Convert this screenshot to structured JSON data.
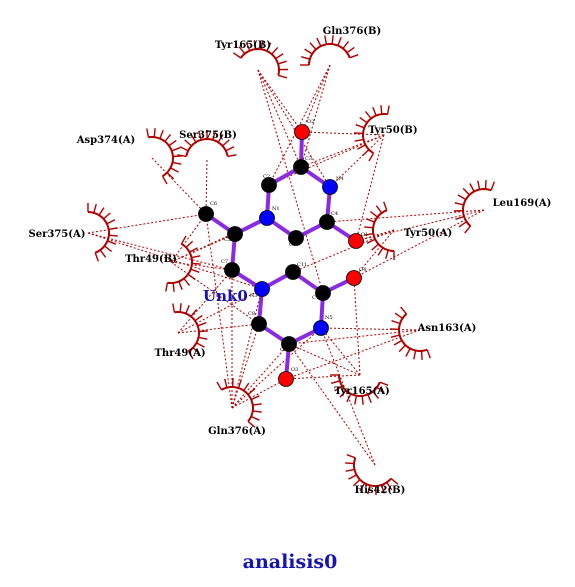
{
  "ligand": {
    "name": "Unk0"
  },
  "caption": "analisis0",
  "colors": {
    "bond": "#8a2be2",
    "hydrophobic": "#b00000",
    "carbon": "#000000",
    "nitrogen": "#0000ff",
    "oxygen": "#ff0000",
    "caption": "#1414b4"
  },
  "atoms": [
    {
      "id": "O2",
      "element": "O",
      "label": "O2"
    },
    {
      "id": "C3",
      "element": "C",
      "label": "C3"
    },
    {
      "id": "C2",
      "element": "C",
      "label": "C2"
    },
    {
      "id": "N4",
      "element": "N",
      "label": "N4"
    },
    {
      "id": "N1",
      "element": "N",
      "label": "N1"
    },
    {
      "id": "C5",
      "element": "C",
      "label": "C5"
    },
    {
      "id": "C6",
      "element": "C",
      "label": "C6"
    },
    {
      "id": "C1",
      "element": "C",
      "label": "C1"
    },
    {
      "id": "O1",
      "element": "O",
      "label": "O1"
    },
    {
      "id": "C4",
      "element": "C",
      "label": "C4"
    },
    {
      "id": "C7",
      "element": "C",
      "label": "C7"
    },
    {
      "id": "C11",
      "element": "C",
      "label": "C11"
    },
    {
      "id": "O4",
      "element": "O",
      "label": "O4"
    },
    {
      "id": "N3",
      "element": "N",
      "label": "N3"
    },
    {
      "id": "C10",
      "element": "C",
      "label": "C10"
    },
    {
      "id": "C8",
      "element": "C",
      "label": "C8"
    },
    {
      "id": "N5",
      "element": "N",
      "label": "N5"
    },
    {
      "id": "C9",
      "element": "C",
      "label": "C9"
    },
    {
      "id": "O3",
      "element": "O",
      "label": "O3"
    }
  ],
  "bonds": [
    [
      "O2",
      "C3"
    ],
    [
      "C3",
      "C2"
    ],
    [
      "C3",
      "N4"
    ],
    [
      "C2",
      "N1"
    ],
    [
      "N4",
      "C4"
    ],
    [
      "C4",
      "O1"
    ],
    [
      "C4",
      "C1"
    ],
    [
      "C1",
      "N1"
    ],
    [
      "N1",
      "C5"
    ],
    [
      "C5",
      "C6"
    ],
    [
      "C5",
      "C7"
    ],
    [
      "C7",
      "N3"
    ],
    [
      "N3",
      "C11"
    ],
    [
      "C11",
      "C10"
    ],
    [
      "C10",
      "O4"
    ],
    [
      "C10",
      "N5"
    ],
    [
      "N5",
      "C9"
    ],
    [
      "C9",
      "C8"
    ],
    [
      "C8",
      "N3"
    ],
    [
      "C9",
      "O3"
    ]
  ],
  "residues": [
    {
      "id": "tyr165b",
      "label": "Tyr165(B)"
    },
    {
      "id": "gln376b",
      "label": "Gln376(B)"
    },
    {
      "id": "asp374a",
      "label": "Asp374(A)"
    },
    {
      "id": "ser375b",
      "label": "Ser375(B)"
    },
    {
      "id": "tyr50b",
      "label": "Tyr50(B)"
    },
    {
      "id": "leu169a",
      "label": "Leu169(A)"
    },
    {
      "id": "ser375a",
      "label": "Ser375(A)"
    },
    {
      "id": "tyr50a",
      "label": "Tyr50(A)"
    },
    {
      "id": "thr49b",
      "label": "Thr49(B)"
    },
    {
      "id": "asn163a",
      "label": "Asn163(A)"
    },
    {
      "id": "thr49a",
      "label": "Thr49(A)"
    },
    {
      "id": "tyr165a",
      "label": "Tyr165(A)"
    },
    {
      "id": "gln376a",
      "label": "Gln376(A)"
    },
    {
      "id": "his42b",
      "label": "His42(B)"
    }
  ],
  "contacts": [
    [
      "tyr165b",
      "O2"
    ],
    [
      "tyr165b",
      "C3"
    ],
    [
      "tyr165b",
      "N4"
    ],
    [
      "tyr165b",
      "C10"
    ],
    [
      "gln376b",
      "O2"
    ],
    [
      "gln376b",
      "C2"
    ],
    [
      "gln376b",
      "C3"
    ],
    [
      "asp374a",
      "C6"
    ],
    [
      "ser375b",
      "C6"
    ],
    [
      "tyr50b",
      "O2"
    ],
    [
      "tyr50b",
      "C3"
    ],
    [
      "tyr50b",
      "N4"
    ],
    [
      "tyr50b",
      "O1"
    ],
    [
      "tyr50b",
      "C2"
    ],
    [
      "leu169a",
      "O1"
    ],
    [
      "leu169a",
      "O4"
    ],
    [
      "leu169a",
      "C4"
    ],
    [
      "ser375a",
      "C6"
    ],
    [
      "ser375a",
      "C7"
    ],
    [
      "ser375a",
      "N3"
    ],
    [
      "tyr50a",
      "O1"
    ],
    [
      "tyr50a",
      "O4"
    ],
    [
      "tyr50a",
      "C11"
    ],
    [
      "thr49b",
      "C6"
    ],
    [
      "thr49b",
      "C5"
    ],
    [
      "thr49b",
      "C7"
    ],
    [
      "thr49b",
      "N1"
    ],
    [
      "thr49b",
      "C8"
    ],
    [
      "asn163a",
      "N5"
    ],
    [
      "asn163a",
      "O3"
    ],
    [
      "asn163a",
      "C9"
    ],
    [
      "thr49a",
      "C7"
    ],
    [
      "thr49a",
      "N3"
    ],
    [
      "thr49a",
      "C8"
    ],
    [
      "tyr165a",
      "O4"
    ],
    [
      "tyr165a",
      "N5"
    ],
    [
      "tyr165a",
      "O3"
    ],
    [
      "tyr165a",
      "C9"
    ],
    [
      "gln376a",
      "C6"
    ],
    [
      "gln376a",
      "C7"
    ],
    [
      "gln376a",
      "C8"
    ],
    [
      "gln376a",
      "C9"
    ],
    [
      "gln376a",
      "O3"
    ],
    [
      "gln376a",
      "N5"
    ],
    [
      "gln376a",
      "N3"
    ],
    [
      "his42b",
      "C9"
    ],
    [
      "his42b",
      "N5"
    ]
  ]
}
